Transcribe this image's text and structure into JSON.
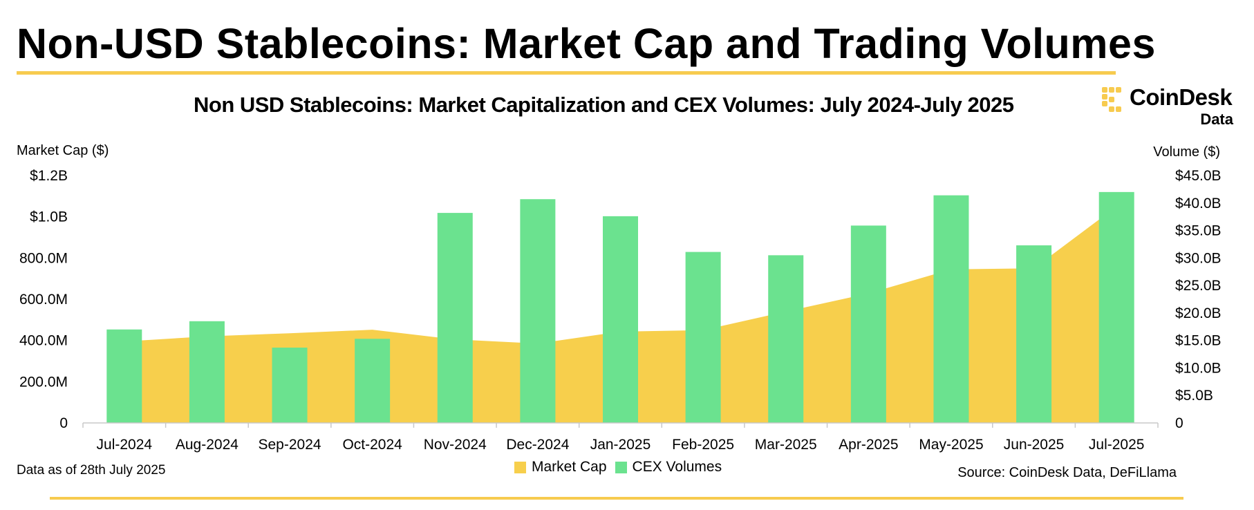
{
  "page": {
    "headline": "Non-USD Stablecoins: Market Cap and Trading Volumes",
    "footnote": "Data as of 28th July 2025",
    "source": "Source: CoinDesk Data, DeFiLlama",
    "logo": {
      "word": "CoinDesk",
      "sub": "Data",
      "icon": "coindesk-logo-icon"
    }
  },
  "colors": {
    "accent": "#f7cb4f",
    "market_cap": "#f7cf4c",
    "cex_volumes": "#6be28f",
    "axis": "#c8c8c8"
  },
  "chart_data": {
    "type": "bar",
    "title": "Non USD Stablecoins: Market Capitalization and CEX Volumes: July 2024-July 2025",
    "categories": [
      "Jul-2024",
      "Aug-2024",
      "Sep-2024",
      "Oct-2024",
      "Nov-2024",
      "Dec-2024",
      "Jan-2025",
      "Feb-2025",
      "Mar-2025",
      "Apr-2025",
      "May-2025",
      "Jun-2025",
      "Jul-2025"
    ],
    "ylabel": "Market Cap ($)",
    "y2label": "Volume ($)",
    "ylim": [
      0,
      1200000000
    ],
    "y2lim": [
      0,
      45000000000
    ],
    "yticks": [
      {
        "value": 0,
        "label": "0"
      },
      {
        "value": 200000000,
        "label": "200.0M"
      },
      {
        "value": 400000000,
        "label": "400.0M"
      },
      {
        "value": 600000000,
        "label": "600.0M"
      },
      {
        "value": 800000000,
        "label": "800.0M"
      },
      {
        "value": 1000000000,
        "label": "$1.0B"
      },
      {
        "value": 1200000000,
        "label": "$1.2B"
      }
    ],
    "y2ticks": [
      {
        "value": 0,
        "label": "0"
      },
      {
        "value": 5000000000,
        "label": "$5.0B"
      },
      {
        "value": 10000000000,
        "label": "$10.0B"
      },
      {
        "value": 15000000000,
        "label": "$15.0B"
      },
      {
        "value": 20000000000,
        "label": "$20.0B"
      },
      {
        "value": 25000000000,
        "label": "$25.0B"
      },
      {
        "value": 30000000000,
        "label": "$30.0B"
      },
      {
        "value": 35000000000,
        "label": "$35.0B"
      },
      {
        "value": 40000000000,
        "label": "$40.0B"
      },
      {
        "value": 45000000000,
        "label": "$45.0B"
      }
    ],
    "series": [
      {
        "name": "Market Cap",
        "type": "area",
        "axis": "left",
        "values": [
          395000000,
          420000000,
          435000000,
          452000000,
          405000000,
          385000000,
          443000000,
          450000000,
          540000000,
          628000000,
          745000000,
          750000000,
          1050000000
        ]
      },
      {
        "name": "CEX Volumes",
        "type": "bar",
        "axis": "right",
        "values": [
          17000000000,
          18500000000,
          13700000000,
          15300000000,
          38200000000,
          40700000000,
          37600000000,
          31100000000,
          30500000000,
          35900000000,
          41400000000,
          32300000000,
          42000000000
        ]
      }
    ],
    "grid": false,
    "legend": "bottom-center"
  }
}
